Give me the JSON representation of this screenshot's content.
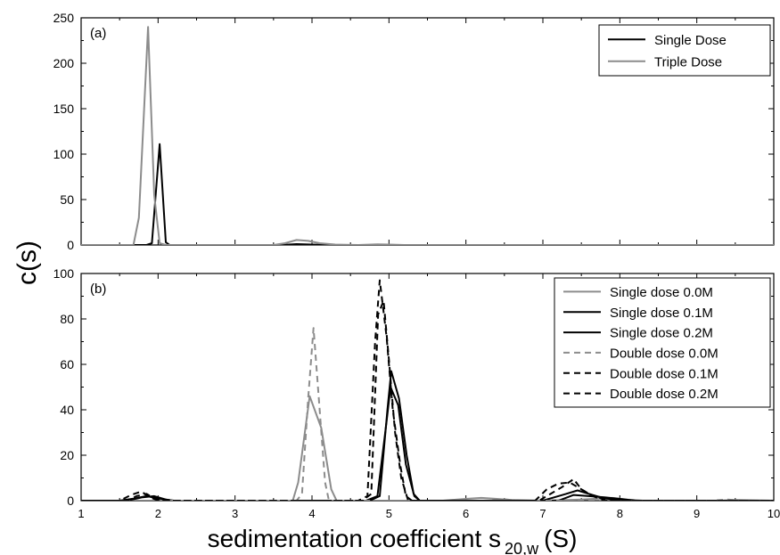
{
  "figure": {
    "ylabel": "c(s)",
    "xlabel_main": "sedimentation coefficient s",
    "xlabel_sub": "20,w",
    "xlabel_unit": "(S)"
  },
  "chart_data": [
    {
      "type": "line",
      "panel_label": "(a)",
      "xlim": [
        1,
        10
      ],
      "ylim": [
        0,
        250
      ],
      "x_ticks": [
        1,
        2,
        3,
        4,
        5,
        6,
        7,
        8,
        9,
        10
      ],
      "y_ticks": [
        0,
        50,
        100,
        150,
        200,
        250
      ],
      "grid": false,
      "legend_position": "top-right",
      "series": [
        {
          "name": "Single Dose",
          "color": "#000000",
          "dash": "solid",
          "points": [
            [
              1.0,
              0
            ],
            [
              1.85,
              0
            ],
            [
              1.92,
              2
            ],
            [
              2.02,
              111
            ],
            [
              2.1,
              3
            ],
            [
              2.15,
              0
            ],
            [
              3.6,
              0
            ],
            [
              3.8,
              1
            ],
            [
              4.0,
              0.5
            ],
            [
              4.2,
              0
            ],
            [
              10.0,
              0
            ]
          ]
        },
        {
          "name": "Triple Dose",
          "color": "#8c8c8c",
          "dash": "solid",
          "points": [
            [
              1.0,
              0
            ],
            [
              1.68,
              0
            ],
            [
              1.75,
              30
            ],
            [
              1.87,
              240
            ],
            [
              1.95,
              55
            ],
            [
              2.02,
              2
            ],
            [
              2.1,
              0
            ],
            [
              3.5,
              0
            ],
            [
              3.65,
              2
            ],
            [
              3.8,
              5.5
            ],
            [
              3.95,
              4.5
            ],
            [
              4.1,
              2
            ],
            [
              4.3,
              0.5
            ],
            [
              4.6,
              0
            ],
            [
              4.85,
              0.8
            ],
            [
              5.0,
              0.5
            ],
            [
              5.2,
              0
            ],
            [
              10.0,
              0
            ]
          ]
        }
      ]
    },
    {
      "type": "line",
      "panel_label": "(b)",
      "xlim": [
        1,
        10
      ],
      "ylim": [
        0,
        100
      ],
      "x_ticks": [
        1,
        2,
        3,
        4,
        5,
        6,
        7,
        8,
        9,
        10
      ],
      "y_ticks": [
        0,
        20,
        40,
        60,
        80,
        100
      ],
      "grid": false,
      "legend_position": "top-right",
      "series": [
        {
          "name": "Single dose 0.0M",
          "color": "#8c8c8c",
          "dash": "solid",
          "points": [
            [
              1.0,
              0
            ],
            [
              3.75,
              0
            ],
            [
              3.82,
              8
            ],
            [
              3.97,
              46
            ],
            [
              4.12,
              32
            ],
            [
              4.25,
              5
            ],
            [
              4.32,
              0
            ],
            [
              5.7,
              0
            ],
            [
              6.0,
              0.8
            ],
            [
              6.2,
              1.2
            ],
            [
              6.4,
              0.8
            ],
            [
              6.6,
              0.3
            ],
            [
              7.0,
              0
            ],
            [
              7.5,
              0.5
            ],
            [
              7.9,
              1.2
            ],
            [
              8.1,
              0.5
            ],
            [
              8.3,
              0
            ],
            [
              9.3,
              0
            ],
            [
              9.5,
              0.3
            ],
            [
              10.0,
              0
            ]
          ]
        },
        {
          "name": "Single dose 0.1M",
          "color": "#000000",
          "dash": "solid",
          "points": [
            [
              1.0,
              0
            ],
            [
              1.5,
              0
            ],
            [
              1.7,
              1
            ],
            [
              1.85,
              2
            ],
            [
              2.0,
              1
            ],
            [
              2.2,
              0
            ],
            [
              4.7,
              0
            ],
            [
              4.85,
              2
            ],
            [
              4.97,
              35
            ],
            [
              5.02,
              50
            ],
            [
              5.12,
              42
            ],
            [
              5.22,
              16
            ],
            [
              5.33,
              2
            ],
            [
              5.4,
              0
            ],
            [
              7.0,
              0
            ],
            [
              7.3,
              3
            ],
            [
              7.45,
              4.5
            ],
            [
              7.6,
              3
            ],
            [
              7.8,
              1
            ],
            [
              8.0,
              0.3
            ],
            [
              8.2,
              0
            ],
            [
              10.0,
              0
            ]
          ]
        },
        {
          "name": "Single dose 0.2M",
          "color": "#000000",
          "dash": "solid",
          "points": [
            [
              1.0,
              0
            ],
            [
              1.6,
              0
            ],
            [
              1.8,
              1.5
            ],
            [
              1.95,
              2
            ],
            [
              2.1,
              0.5
            ],
            [
              2.2,
              0
            ],
            [
              4.75,
              0
            ],
            [
              4.88,
              2
            ],
            [
              4.98,
              40
            ],
            [
              5.03,
              57
            ],
            [
              5.13,
              45
            ],
            [
              5.23,
              20
            ],
            [
              5.32,
              3
            ],
            [
              5.4,
              0
            ],
            [
              7.2,
              0
            ],
            [
              7.4,
              2.5
            ],
            [
              7.6,
              2
            ],
            [
              7.8,
              1.5
            ],
            [
              8.0,
              0.8
            ],
            [
              8.2,
              0
            ],
            [
              10.0,
              0
            ]
          ]
        },
        {
          "name": "Double dose 0.0M",
          "color": "#8c8c8c",
          "dash": "dashed",
          "points": [
            [
              1.0,
              0
            ],
            [
              3.8,
              0
            ],
            [
              3.87,
              3
            ],
            [
              3.95,
              45
            ],
            [
              4.02,
              76
            ],
            [
              4.1,
              40
            ],
            [
              4.17,
              8
            ],
            [
              4.22,
              0
            ],
            [
              6.3,
              0
            ],
            [
              6.5,
              0.6
            ],
            [
              6.7,
              0
            ],
            [
              9.2,
              0
            ],
            [
              9.4,
              0.5
            ],
            [
              9.6,
              0
            ],
            [
              10.0,
              0
            ]
          ]
        },
        {
          "name": "Double dose 0.1M",
          "color": "#000000",
          "dash": "dashed",
          "points": [
            [
              1.0,
              0
            ],
            [
              1.5,
              0
            ],
            [
              1.65,
              2.5
            ],
            [
              1.78,
              4
            ],
            [
              1.9,
              1.5
            ],
            [
              2.0,
              0
            ],
            [
              4.6,
              0
            ],
            [
              4.72,
              2
            ],
            [
              4.82,
              70
            ],
            [
              4.88,
              97
            ],
            [
              4.97,
              72
            ],
            [
              5.05,
              40
            ],
            [
              5.15,
              15
            ],
            [
              5.22,
              2
            ],
            [
              5.3,
              0
            ],
            [
              6.9,
              0
            ],
            [
              7.05,
              5
            ],
            [
              7.2,
              7.5
            ],
            [
              7.35,
              8
            ],
            [
              7.45,
              6
            ],
            [
              7.6,
              3
            ],
            [
              7.75,
              1
            ],
            [
              7.9,
              0
            ],
            [
              10.0,
              0
            ]
          ]
        },
        {
          "name": "Double dose 0.2M",
          "color": "#000000",
          "dash": "dashed",
          "points": [
            [
              1.0,
              0
            ],
            [
              1.6,
              0
            ],
            [
              1.72,
              2
            ],
            [
              1.85,
              3
            ],
            [
              1.95,
              1
            ],
            [
              2.05,
              0
            ],
            [
              4.65,
              0
            ],
            [
              4.77,
              3
            ],
            [
              4.86,
              82
            ],
            [
              4.93,
              88
            ],
            [
              5.0,
              62
            ],
            [
              5.08,
              30
            ],
            [
              5.16,
              10
            ],
            [
              5.25,
              0
            ],
            [
              6.95,
              0
            ],
            [
              7.1,
              3
            ],
            [
              7.25,
              6
            ],
            [
              7.4,
              9.5
            ],
            [
              7.5,
              5
            ],
            [
              7.65,
              2
            ],
            [
              7.8,
              0
            ],
            [
              10.0,
              0
            ]
          ]
        }
      ]
    }
  ]
}
